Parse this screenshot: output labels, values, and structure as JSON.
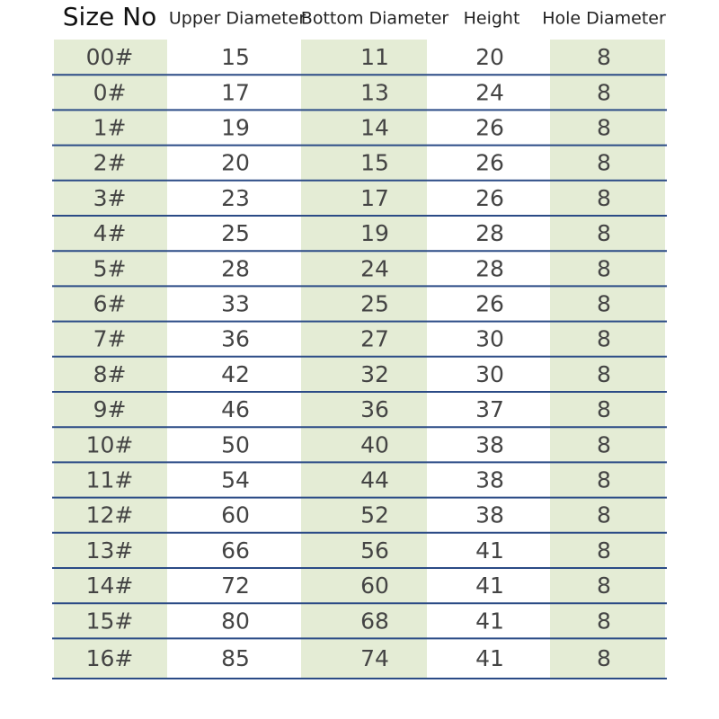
{
  "table": {
    "header": [
      "Size No",
      "Upper Diameter",
      "Bottom Diameter",
      "Height",
      "Hole Diameter"
    ],
    "rows": [
      [
        "00#",
        15,
        11,
        20,
        8
      ],
      [
        "0#",
        17,
        13,
        24,
        8
      ],
      [
        "1#",
        19,
        14,
        26,
        8
      ],
      [
        "2#",
        20,
        15,
        26,
        8
      ],
      [
        "3#",
        23,
        17,
        26,
        8
      ],
      [
        "4#",
        25,
        19,
        28,
        8
      ],
      [
        "5#",
        28,
        24,
        28,
        8
      ],
      [
        "6#",
        33,
        25,
        26,
        8
      ],
      [
        "7#",
        36,
        27,
        30,
        8
      ],
      [
        "8#",
        42,
        32,
        30,
        8
      ],
      [
        "9#",
        46,
        36,
        37,
        8
      ],
      [
        "10#",
        50,
        40,
        38,
        8
      ],
      [
        "11#",
        54,
        44,
        38,
        8
      ],
      [
        "12#",
        60,
        52,
        38,
        8
      ],
      [
        "13#",
        66,
        56,
        41,
        8
      ],
      [
        "14#",
        72,
        60,
        41,
        8
      ],
      [
        "15#",
        80,
        68,
        41,
        8
      ],
      [
        "16#",
        85,
        74,
        41,
        8
      ]
    ]
  }
}
